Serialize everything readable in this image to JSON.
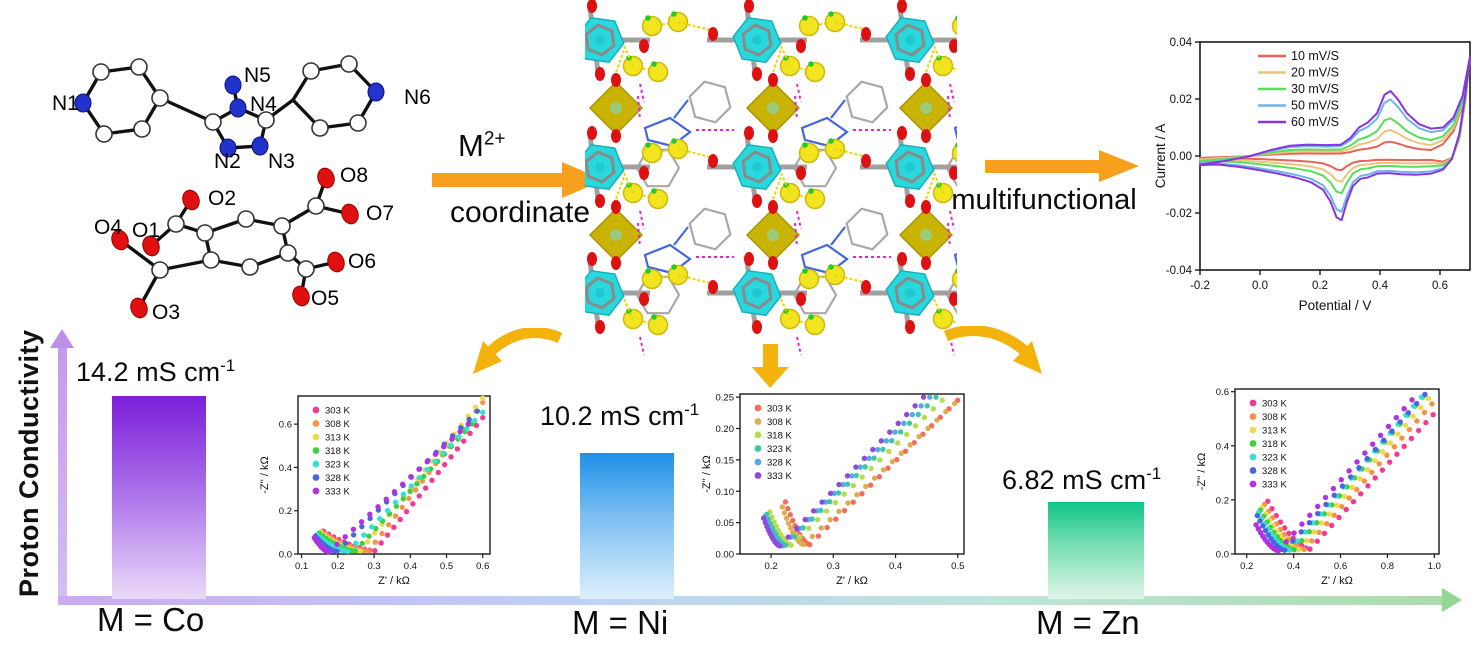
{
  "ortep": {
    "mol1_labels": [
      "N1",
      "N5",
      "N4",
      "N2",
      "N3",
      "N6"
    ],
    "mol2_labels": [
      "O2",
      "O8",
      "O7",
      "O6",
      "O5",
      "O3",
      "O4",
      "O1"
    ]
  },
  "arrows": {
    "left": {
      "m_base": "M",
      "m_sup": "2+",
      "bottom": "coordinate"
    },
    "right": {
      "label": "multifunctional"
    }
  },
  "axis": {
    "label": "Proton Conductivity"
  },
  "bars": [
    {
      "metal": "M = Co",
      "value": 14.2,
      "value_text": "14.2",
      "unit": "mS cm",
      "sup": "-1"
    },
    {
      "metal": "M = Ni",
      "value": 10.2,
      "value_text": "10.2",
      "unit": "mS cm",
      "sup": "-1"
    },
    {
      "metal": "M = Zn",
      "value": 6.82,
      "value_text": "6.82",
      "unit": "mS cm",
      "sup": "-1"
    }
  ],
  "chart_data": [
    {
      "type": "line",
      "name": "cyclic-voltammetry",
      "xlabel": "Potential / V",
      "ylabel": "Current / A",
      "xlim": [
        -0.2,
        0.7
      ],
      "ylim": [
        -0.04,
        0.04
      ],
      "xticks": [
        "-0.2",
        "0.0",
        "0.2",
        "0.4",
        "0.6"
      ],
      "yticks": [
        "0.04",
        "0.02",
        "0.00",
        "-0.02",
        "-0.04"
      ],
      "legend_position": "upper-left",
      "grid": false,
      "series": [
        {
          "name": "10 mV/S",
          "color": "#e6625a",
          "amp": 0.22,
          "anodic_peak_V": 0.41,
          "cathodic_peak_V": 0.27
        },
        {
          "name": "20 mV/S",
          "color": "#ecc47c",
          "amp": 0.4,
          "anodic_peak_V": 0.41,
          "cathodic_peak_V": 0.27
        },
        {
          "name": "30 mV/S",
          "color": "#58de58",
          "amp": 0.58,
          "anodic_peak_V": 0.42,
          "cathodic_peak_V": 0.27
        },
        {
          "name": "50 mV/S",
          "color": "#6fb3e8",
          "amp": 0.87,
          "anodic_peak_V": 0.43,
          "cathodic_peak_V": 0.265
        },
        {
          "name": "60 mV/S",
          "color": "#8637dc",
          "amp": 1.0,
          "anodic_peak_V": 0.43,
          "cathodic_peak_V": 0.26
        }
      ]
    },
    {
      "type": "scatter",
      "name": "nyquist-co",
      "xlabel": "Z' / kΩ",
      "ylabel": "-Z'' / kΩ",
      "xlim": [
        0.09,
        0.62
      ],
      "ylim": [
        0,
        0.73
      ],
      "xticks": [
        "0.1",
        "0.2",
        "0.3",
        "0.4",
        "0.5",
        "0.6"
      ],
      "yticks": [
        "0.0",
        "0.2",
        "0.4",
        "0.6"
      ],
      "legend_position": "upper-left",
      "series": [
        {
          "name": "303 K",
          "color": "#f03a96",
          "start": [
            0.16,
            0.106
          ],
          "dip": [
            0.302,
            0.015
          ],
          "end": [
            0.6,
            0.63
          ]
        },
        {
          "name": "308 K",
          "color": "#f59348",
          "start": [
            0.156,
            0.103
          ],
          "dip": [
            0.285,
            0.014
          ],
          "end": [
            0.6,
            0.7
          ]
        },
        {
          "name": "313 K",
          "color": "#edd94f",
          "start": [
            0.152,
            0.1
          ],
          "dip": [
            0.262,
            0.014
          ],
          "end": [
            0.6,
            0.72
          ]
        },
        {
          "name": "318 K",
          "color": "#3fd03f",
          "start": [
            0.148,
            0.096
          ],
          "dip": [
            0.248,
            0.014
          ],
          "end": [
            0.57,
            0.6
          ]
        },
        {
          "name": "323 K",
          "color": "#35e0d6",
          "start": [
            0.142,
            0.09
          ],
          "dip": [
            0.228,
            0.012
          ],
          "end": [
            0.6,
            0.655
          ]
        },
        {
          "name": "328 K",
          "color": "#4a66de",
          "start": [
            0.138,
            0.082
          ],
          "dip": [
            0.198,
            0.012
          ],
          "end": [
            0.585,
            0.66
          ]
        },
        {
          "name": "333 K",
          "color": "#b032e0",
          "start": [
            0.135,
            0.075
          ],
          "dip": [
            0.175,
            0.01
          ],
          "end": [
            0.56,
            0.6
          ]
        }
      ]
    },
    {
      "type": "scatter",
      "name": "nyquist-ni",
      "xlabel": "Z' / kΩ",
      "ylabel": "-Z'' / kΩ",
      "xlim": [
        0.15,
        0.51
      ],
      "ylim": [
        0,
        0.255
      ],
      "xticks": [
        "0.2",
        "0.3",
        "0.4",
        "0.5"
      ],
      "yticks": [
        "0.00",
        "0.05",
        "0.10",
        "0.15",
        "0.20",
        "0.25"
      ],
      "legend_position": "upper-left",
      "series": [
        {
          "name": "303 K",
          "color": "#f26d5f",
          "start": [
            0.223,
            0.083
          ],
          "dip": [
            0.262,
            0.015
          ],
          "end": [
            0.5,
            0.245
          ]
        },
        {
          "name": "308 K",
          "color": "#ddae4e",
          "start": [
            0.218,
            0.075
          ],
          "dip": [
            0.252,
            0.015
          ],
          "end": [
            0.495,
            0.24
          ]
        },
        {
          "name": "318 K",
          "color": "#b8dc50",
          "start": [
            0.198,
            0.067
          ],
          "dip": [
            0.232,
            0.014
          ],
          "end": [
            0.475,
            0.245
          ]
        },
        {
          "name": "323 K",
          "color": "#3dc8a5",
          "start": [
            0.193,
            0.063
          ],
          "dip": [
            0.223,
            0.014
          ],
          "end": [
            0.465,
            0.25
          ]
        },
        {
          "name": "328 K",
          "color": "#5ba8e8",
          "start": [
            0.19,
            0.06
          ],
          "dip": [
            0.218,
            0.013
          ],
          "end": [
            0.455,
            0.25
          ]
        },
        {
          "name": "333 K",
          "color": "#8c4bd8",
          "start": [
            0.188,
            0.057
          ],
          "dip": [
            0.214,
            0.013
          ],
          "end": [
            0.445,
            0.25
          ]
        }
      ]
    },
    {
      "type": "scatter",
      "name": "nyquist-zn",
      "xlabel": "Z' / kΩ",
      "ylabel": "-Z'' / kΩ",
      "xlim": [
        0.15,
        1.02
      ],
      "ylim": [
        0,
        0.61
      ],
      "xticks": [
        "0.2",
        "0.4",
        "0.6",
        "0.8",
        "1.0"
      ],
      "yticks": [
        "0.0",
        "0.2",
        "0.4",
        "0.6"
      ],
      "legend_position": "upper-left",
      "series": [
        {
          "name": "303 K",
          "color": "#f03a96",
          "start": [
            0.29,
            0.195
          ],
          "dip": [
            0.47,
            0.018
          ],
          "end": [
            0.995,
            0.515
          ]
        },
        {
          "name": "308 K",
          "color": "#f59348",
          "start": [
            0.276,
            0.183
          ],
          "dip": [
            0.445,
            0.017
          ],
          "end": [
            0.99,
            0.555
          ]
        },
        {
          "name": "313 K",
          "color": "#edd94f",
          "start": [
            0.266,
            0.172
          ],
          "dip": [
            0.422,
            0.016
          ],
          "end": [
            0.975,
            0.575
          ]
        },
        {
          "name": "318 K",
          "color": "#3fd03f",
          "start": [
            0.258,
            0.162
          ],
          "dip": [
            0.402,
            0.016
          ],
          "end": [
            0.95,
            0.58
          ]
        },
        {
          "name": "323 K",
          "color": "#35e0d6",
          "start": [
            0.25,
            0.152
          ],
          "dip": [
            0.382,
            0.015
          ],
          "end": [
            0.945,
            0.58
          ]
        },
        {
          "name": "328 K",
          "color": "#4a66de",
          "start": [
            0.245,
            0.142
          ],
          "dip": [
            0.362,
            0.014
          ],
          "end": [
            0.96,
            0.59
          ]
        },
        {
          "name": "333 K",
          "color": "#b032e0",
          "start": [
            0.24,
            0.108
          ],
          "dip": [
            0.335,
            0.012
          ],
          "end": [
            0.905,
            0.57
          ]
        }
      ]
    },
    {
      "type": "bar",
      "name": "proton-conductivity-summary",
      "title": "Proton Conductivity",
      "categories": [
        "M = Co",
        "M = Ni",
        "M = Zn"
      ],
      "values": [
        14.2,
        10.2,
        6.82
      ],
      "unit": "mS cm⁻¹",
      "bar_colors": [
        "#7a1fd9",
        "#1e90e8",
        "#0fc487"
      ]
    }
  ],
  "colors": {
    "arrow_orange": "#f6a01e",
    "arrow_amber": "#f3b30c",
    "axis_purple": "#c49bec",
    "baseline_green": "#93d793"
  }
}
